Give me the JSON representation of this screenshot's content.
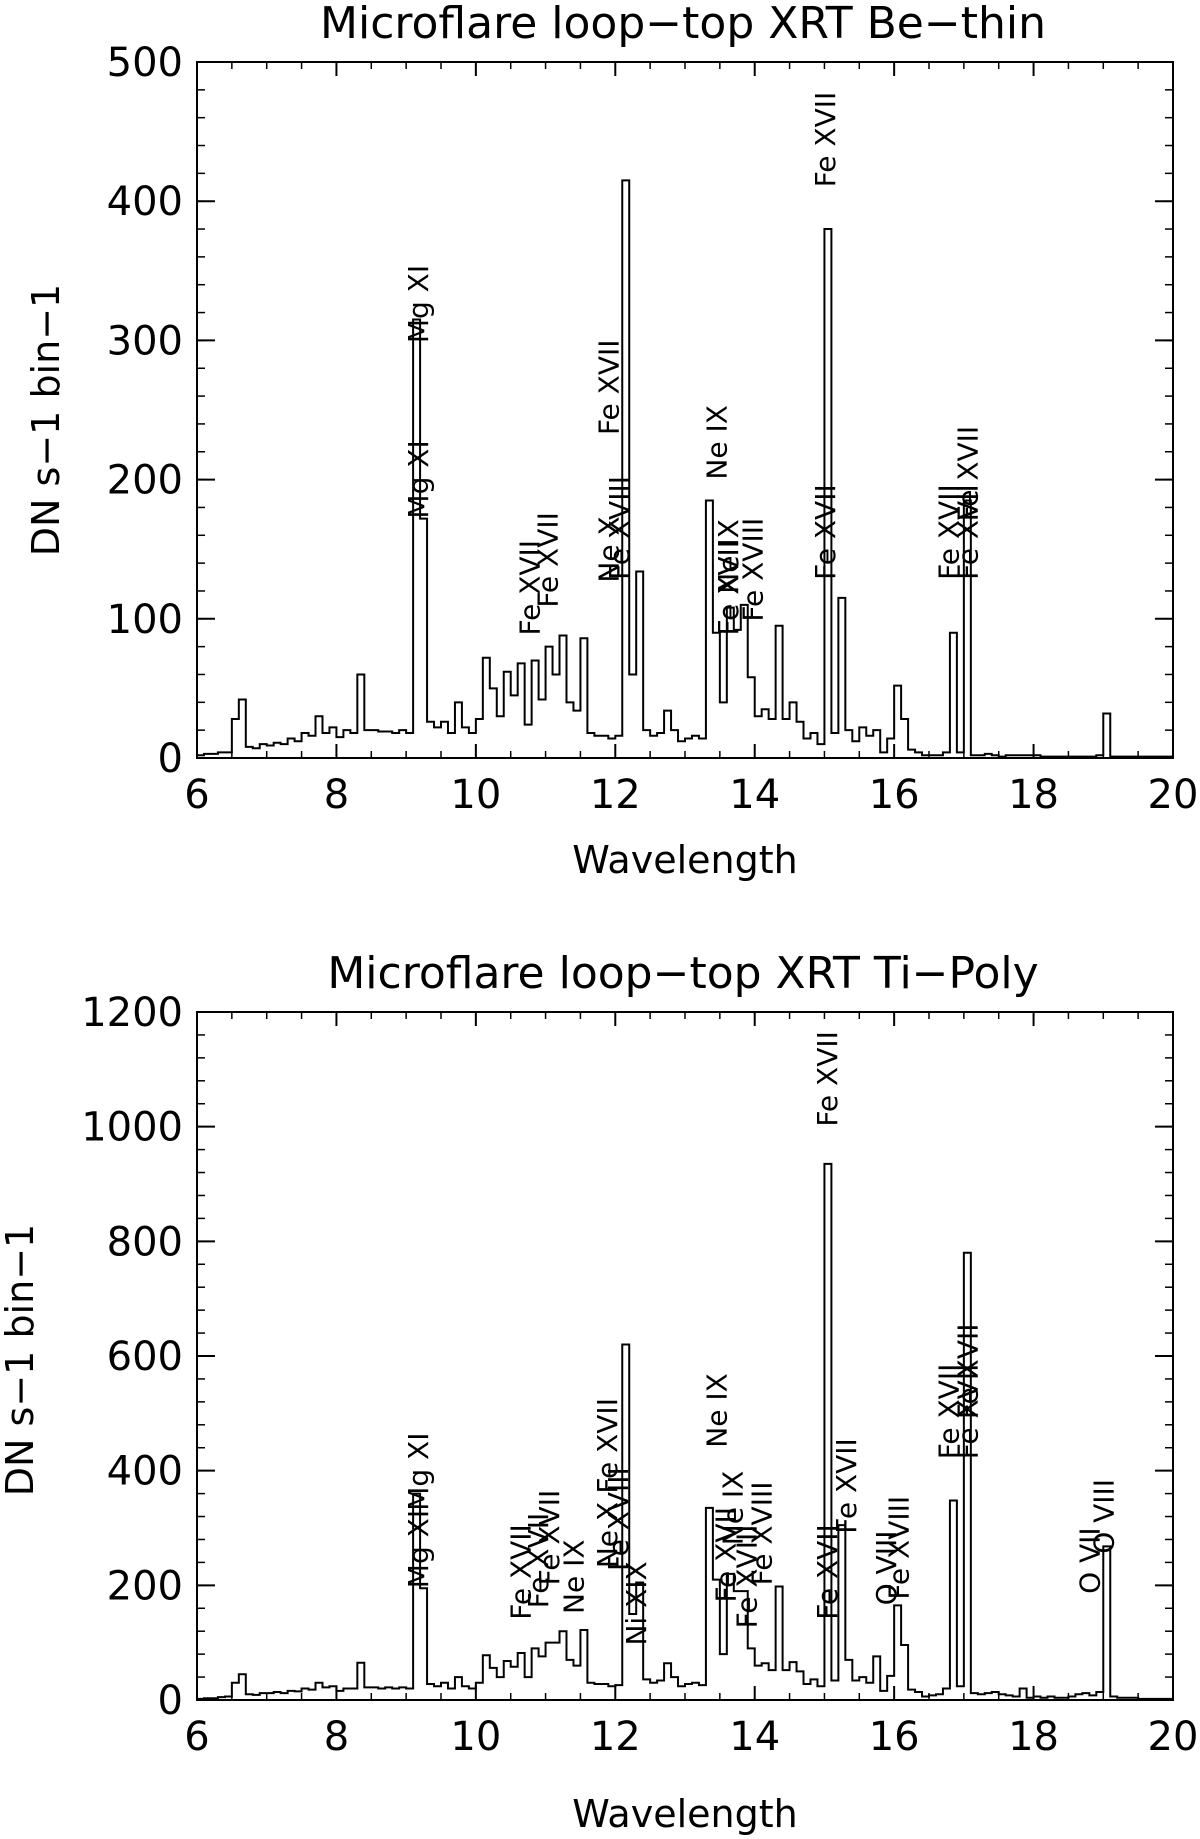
{
  "chart_data": [
    {
      "type": "line",
      "step": true,
      "title": "Microflare loop−top XRT Be−thin",
      "xlabel": "Wavelength",
      "ylabel": "DN s−1 bin−1",
      "xlim": [
        6,
        20
      ],
      "ylim": [
        0,
        500
      ],
      "xticks": [
        "6",
        "8",
        "10",
        "12",
        "14",
        "16",
        "18",
        "20"
      ],
      "yticks": [
        "0",
        "100",
        "200",
        "300",
        "400",
        "500"
      ],
      "grid": false,
      "x": [
        6.0,
        6.1,
        6.2,
        6.3,
        6.4,
        6.5,
        6.6,
        6.7,
        6.8,
        6.9,
        7.0,
        7.1,
        7.2,
        7.3,
        7.4,
        7.5,
        7.6,
        7.7,
        7.8,
        7.9,
        8.0,
        8.1,
        8.2,
        8.3,
        8.4,
        8.5,
        8.6,
        8.7,
        8.8,
        8.9,
        9.0,
        9.1,
        9.2,
        9.3,
        9.4,
        9.5,
        9.6,
        9.7,
        9.8,
        9.9,
        10.0,
        10.1,
        10.2,
        10.3,
        10.4,
        10.5,
        10.6,
        10.7,
        10.8,
        10.9,
        11.0,
        11.1,
        11.2,
        11.3,
        11.4,
        11.5,
        11.6,
        11.7,
        11.8,
        11.9,
        12.0,
        12.1,
        12.2,
        12.3,
        12.4,
        12.5,
        12.6,
        12.7,
        12.8,
        12.9,
        13.0,
        13.1,
        13.2,
        13.3,
        13.4,
        13.5,
        13.6,
        13.7,
        13.8,
        13.9,
        14.0,
        14.1,
        14.2,
        14.3,
        14.4,
        14.5,
        14.6,
        14.7,
        14.8,
        14.9,
        15.0,
        15.1,
        15.2,
        15.3,
        15.4,
        15.5,
        15.6,
        15.7,
        15.8,
        15.9,
        16.0,
        16.1,
        16.2,
        16.3,
        16.4,
        16.5,
        16.6,
        16.7,
        16.8,
        16.9,
        17.0,
        17.1,
        17.2,
        17.3,
        17.4,
        17.5,
        17.6,
        17.7,
        17.8,
        17.9,
        18.0,
        18.1,
        18.2,
        18.3,
        18.4,
        18.5,
        18.6,
        18.7,
        18.8,
        18.9,
        19.0,
        19.1,
        19.2,
        19.3,
        19.4,
        19.5,
        19.6,
        19.7,
        19.8,
        19.9
      ],
      "values": [
        2,
        3,
        3,
        4,
        4,
        28,
        42,
        8,
        7,
        10,
        9,
        11,
        10,
        14,
        12,
        18,
        16,
        30,
        18,
        22,
        15,
        20,
        18,
        60,
        20,
        20,
        19,
        19,
        18,
        20,
        18,
        315,
        172,
        26,
        22,
        26,
        18,
        40,
        22,
        18,
        28,
        72,
        50,
        30,
        62,
        45,
        68,
        24,
        70,
        42,
        80,
        60,
        88,
        40,
        34,
        86,
        18,
        16,
        16,
        14,
        16,
        415,
        60,
        134,
        20,
        16,
        18,
        34,
        20,
        12,
        14,
        16,
        14,
        185,
        90,
        40,
        108,
        92,
        110,
        58,
        30,
        35,
        28,
        95,
        28,
        40,
        26,
        14,
        18,
        10,
        380,
        18,
        115,
        20,
        12,
        22,
        16,
        20,
        4,
        14,
        52,
        28,
        6,
        4,
        2,
        2,
        2,
        4,
        90,
        4,
        185,
        2,
        2,
        3,
        2,
        1,
        2,
        2,
        2,
        2,
        2,
        1,
        1,
        1,
        1,
        1,
        1,
        1,
        1,
        2,
        32,
        1,
        1,
        1,
        1,
        1,
        1,
        1,
        1,
        1
      ],
      "annotations": [
        {
          "text": "Mg XI",
          "x": 9.17,
          "y": 172
        },
        {
          "text": "Mg XI",
          "x": 9.17,
          "y": 298
        },
        {
          "text": "Fe XVII",
          "x": 10.77,
          "y": 88
        },
        {
          "text": "Fe XVII",
          "x": 11.03,
          "y": 108
        },
        {
          "text": "Ne X",
          "x": 11.9,
          "y": 126
        },
        {
          "text": "Fe XVII",
          "x": 11.9,
          "y": 232
        },
        {
          "text": "Fe XVIII",
          "x": 12.05,
          "y": 128
        },
        {
          "text": "Ne IX",
          "x": 13.45,
          "y": 200
        },
        {
          "text": "Fe XVII",
          "x": 13.62,
          "y": 88
        },
        {
          "text": "Ne IX",
          "x": 13.62,
          "y": 118
        },
        {
          "text": "Fe XVIII",
          "x": 13.97,
          "y": 98
        },
        {
          "text": "Fe XVII",
          "x": 15.01,
          "y": 410
        },
        {
          "text": "Fe XVII",
          "x": 15.01,
          "y": 128
        },
        {
          "text": "Fe XVII",
          "x": 16.78,
          "y": 128
        },
        {
          "text": "Fe XVII",
          "x": 17.05,
          "y": 128
        },
        {
          "text": "Fe XVII",
          "x": 17.05,
          "y": 170
        }
      ]
    },
    {
      "type": "line",
      "step": true,
      "title": "Microflare loop−top XRT Ti−Poly",
      "xlabel": "Wavelength",
      "ylabel": "DN s−1 bin−1",
      "xlim": [
        6,
        20
      ],
      "ylim": [
        0,
        1200
      ],
      "xticks": [
        "6",
        "8",
        "10",
        "12",
        "14",
        "16",
        "18",
        "20"
      ],
      "yticks": [
        "0",
        "200",
        "400",
        "600",
        "800",
        "1000",
        "1200"
      ],
      "grid": false,
      "x": [
        6.0,
        6.1,
        6.2,
        6.3,
        6.4,
        6.5,
        6.6,
        6.7,
        6.8,
        6.9,
        7.0,
        7.1,
        7.2,
        7.3,
        7.4,
        7.5,
        7.6,
        7.7,
        7.8,
        7.9,
        8.0,
        8.1,
        8.2,
        8.3,
        8.4,
        8.5,
        8.6,
        8.7,
        8.8,
        8.9,
        9.0,
        9.1,
        9.2,
        9.3,
        9.4,
        9.5,
        9.6,
        9.7,
        9.8,
        9.9,
        10.0,
        10.1,
        10.2,
        10.3,
        10.4,
        10.5,
        10.6,
        10.7,
        10.8,
        10.9,
        11.0,
        11.1,
        11.2,
        11.3,
        11.4,
        11.5,
        11.6,
        11.7,
        11.8,
        11.9,
        12.0,
        12.1,
        12.2,
        12.3,
        12.4,
        12.5,
        12.6,
        12.7,
        12.8,
        12.9,
        13.0,
        13.1,
        13.2,
        13.3,
        13.4,
        13.5,
        13.6,
        13.7,
        13.8,
        13.9,
        14.0,
        14.1,
        14.2,
        14.3,
        14.4,
        14.5,
        14.6,
        14.7,
        14.8,
        14.9,
        15.0,
        15.1,
        15.2,
        15.3,
        15.4,
        15.5,
        15.6,
        15.7,
        15.8,
        15.9,
        16.0,
        16.1,
        16.2,
        16.3,
        16.4,
        16.5,
        16.6,
        16.7,
        16.8,
        16.9,
        17.0,
        17.1,
        17.2,
        17.3,
        17.4,
        17.5,
        17.6,
        17.7,
        17.8,
        17.9,
        18.0,
        18.1,
        18.2,
        18.3,
        18.4,
        18.5,
        18.6,
        18.7,
        18.8,
        18.9,
        19.0,
        19.1,
        19.2,
        19.3,
        19.4,
        19.5,
        19.6,
        19.7,
        19.8,
        19.9
      ],
      "values": [
        2,
        3,
        3,
        5,
        6,
        30,
        45,
        10,
        9,
        12,
        12,
        14,
        12,
        16,
        15,
        20,
        18,
        30,
        22,
        24,
        16,
        20,
        20,
        65,
        22,
        22,
        20,
        22,
        20,
        22,
        20,
        360,
        195,
        28,
        24,
        30,
        20,
        40,
        24,
        20,
        30,
        78,
        56,
        40,
        68,
        58,
        82,
        40,
        90,
        76,
        100,
        100,
        120,
        70,
        60,
        122,
        30,
        28,
        28,
        24,
        26,
        620,
        150,
        205,
        36,
        30,
        34,
        64,
        40,
        24,
        28,
        30,
        26,
        335,
        210,
        80,
        220,
        190,
        190,
        90,
        60,
        64,
        52,
        198,
        52,
        66,
        50,
        28,
        36,
        24,
        935,
        34,
        305,
        70,
        34,
        40,
        30,
        76,
        16,
        42,
        165,
        96,
        18,
        14,
        6,
        8,
        10,
        20,
        348,
        24,
        780,
        12,
        10,
        12,
        14,
        10,
        8,
        6,
        20,
        4,
        6,
        4,
        6,
        4,
        4,
        6,
        10,
        12,
        8,
        14,
        268,
        6,
        4,
        4,
        4,
        2,
        2,
        2,
        2,
        2
      ],
      "annotations": [
        {
          "text": "Mg XI",
          "x": 9.17,
          "y": 195
        },
        {
          "text": "Mg XI",
          "x": 9.17,
          "y": 330
        },
        {
          "text": "Fe XVII",
          "x": 10.64,
          "y": 140
        },
        {
          "text": "Fe XVII",
          "x": 10.89,
          "y": 160
        },
        {
          "text": "Fe XVII",
          "x": 11.05,
          "y": 200
        },
        {
          "text": "Ne IX",
          "x": 11.4,
          "y": 150
        },
        {
          "text": "Ne X",
          "x": 11.88,
          "y": 230
        },
        {
          "text": "Fe XVII",
          "x": 11.88,
          "y": 360
        },
        {
          "text": "Fe XVIII",
          "x": 12.04,
          "y": 225
        },
        {
          "text": "Ni XIX",
          "x": 12.3,
          "y": 95
        },
        {
          "text": "Ne IX",
          "x": 13.45,
          "y": 440
        },
        {
          "text": "Fe XVII",
          "x": 13.58,
          "y": 170
        },
        {
          "text": "Ne IX",
          "x": 13.68,
          "y": 270
        },
        {
          "text": "Fe XVIII",
          "x": 13.88,
          "y": 125
        },
        {
          "text": "Fe XVIII",
          "x": 14.1,
          "y": 200
        },
        {
          "text": "Fe XVII",
          "x": 15.04,
          "y": 1000
        },
        {
          "text": "Fe XVII",
          "x": 15.04,
          "y": 140
        },
        {
          "text": "Fe XVII",
          "x": 15.31,
          "y": 290
        },
        {
          "text": "O VIII",
          "x": 15.88,
          "y": 165
        },
        {
          "text": "Fe XVIII",
          "x": 16.06,
          "y": 175
        },
        {
          "text": "Fe XVII",
          "x": 16.78,
          "y": 420
        },
        {
          "text": "Fe XVII",
          "x": 17.05,
          "y": 420
        },
        {
          "text": "Fe XVII",
          "x": 17.05,
          "y": 490
        },
        {
          "text": "O VII",
          "x": 18.8,
          "y": 185
        },
        {
          "text": "O VIII",
          "x": 19.0,
          "y": 255
        }
      ]
    }
  ]
}
